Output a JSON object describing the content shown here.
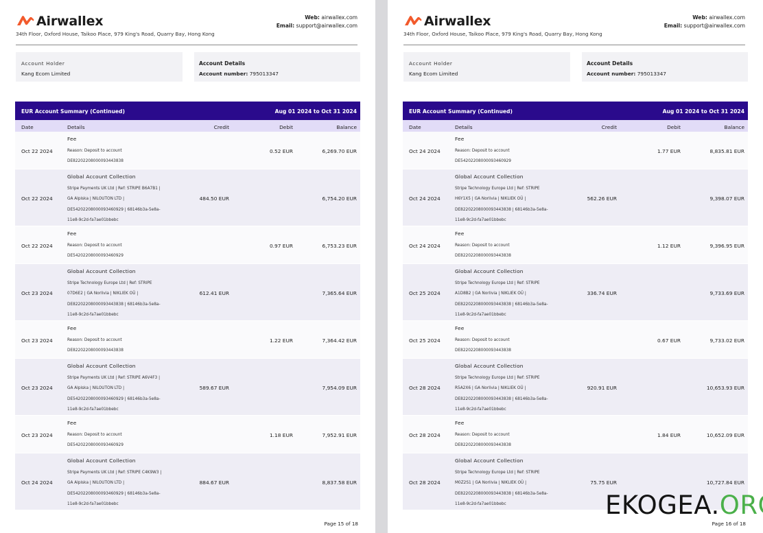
{
  "brand": {
    "name": "Airwallex",
    "address": "34th Floor, Oxford House, Taikoo Place, 979 King's Road, Quarry Bay, Hong Kong",
    "web_label": "Web:",
    "web": "airwallex.com",
    "email_label": "Email:",
    "email": "support@airwallex.com"
  },
  "account": {
    "holder_label": "Account Holder",
    "holder": "Kang Ecom Limited",
    "details_label": "Account Details",
    "number_label": "Account number:",
    "number": "795013347"
  },
  "summary": {
    "title": "EUR Account Summary (Continued)",
    "period": "Aug 01 2024 to Oct 31 2024"
  },
  "columns": {
    "date": "Date",
    "details": "Details",
    "credit": "Credit",
    "debit": "Debit",
    "balance": "Balance"
  },
  "pages": [
    {
      "page_label": "Page 15 of 18",
      "rows": [
        {
          "type": "fee",
          "date": "Oct 22 2024",
          "title": "Fee",
          "lines": [
            "Reason: Deposit to account",
            "DE82202208000093443838"
          ],
          "credit": "",
          "debit": "0.52 EUR",
          "balance": "6,269.70 EUR"
        },
        {
          "type": "collection",
          "date": "Oct 22 2024",
          "title": "Global Account Collection",
          "lines": [
            "Stripe Payments UK Ltd | Ref: STRIPE B6A7B1 |",
            "GA Alpiska | NILOUTON LTD |",
            "DE54202208000093460929 | 68146b3a-5e8a-",
            "11e8-9c2d-fa7ae01bbebc"
          ],
          "credit": "484.50 EUR",
          "debit": "",
          "balance": "6,754.20 EUR"
        },
        {
          "type": "fee",
          "date": "Oct 22 2024",
          "title": "Fee",
          "lines": [
            "Reason: Deposit to account",
            "DE54202208000093460929"
          ],
          "credit": "",
          "debit": "0.97 EUR",
          "balance": "6,753.23 EUR"
        },
        {
          "type": "collection",
          "date": "Oct 23 2024",
          "title": "Global Account Collection",
          "lines": [
            "Stripe Technology Europe Ltd | Ref: STRIPE",
            "07D6E2 | GA Norlivia | NIKLIEK OÜ |",
            "DE82202208000093443838 | 68146b3a-5e8a-",
            "11e8-9c2d-fa7ae01bbebc"
          ],
          "credit": "612.41 EUR",
          "debit": "",
          "balance": "7,365.64 EUR"
        },
        {
          "type": "fee",
          "date": "Oct 23 2024",
          "title": "Fee",
          "lines": [
            "Reason: Deposit to account",
            "DE82202208000093443838"
          ],
          "credit": "",
          "debit": "1.22 EUR",
          "balance": "7,364.42 EUR"
        },
        {
          "type": "collection",
          "date": "Oct 23 2024",
          "title": "Global Account Collection",
          "lines": [
            "Stripe Payments UK Ltd | Ref: STRIPE A6V4F3 |",
            "GA Alpiska | NILOUTON LTD |",
            "DE54202208000093460929 | 68146b3a-5e8a-",
            "11e8-9c2d-fa7ae01bbebc"
          ],
          "credit": "589.67 EUR",
          "debit": "",
          "balance": "7,954.09 EUR"
        },
        {
          "type": "fee",
          "date": "Oct 23 2024",
          "title": "Fee",
          "lines": [
            "Reason: Deposit to account",
            "DE54202208000093460929"
          ],
          "credit": "",
          "debit": "1.18 EUR",
          "balance": "7,952.91 EUR"
        },
        {
          "type": "collection",
          "date": "Oct 24 2024",
          "title": "Global Account Collection",
          "lines": [
            "Stripe Payments UK Ltd | Ref: STRIPE C4K9W3 |",
            "GA Alpiska | NILOUTON LTD |",
            "DE54202208000093460929 | 68146b3a-5e8a-",
            "11e8-9c2d-fa7ae01bbebc"
          ],
          "credit": "884.67 EUR",
          "debit": "",
          "balance": "8,837.58 EUR"
        }
      ]
    },
    {
      "page_label": "Page 16 of 18",
      "rows": [
        {
          "type": "fee",
          "date": "Oct 24 2024",
          "title": "Fee",
          "lines": [
            "Reason: Deposit to account",
            "DE54202208000093460929"
          ],
          "credit": "",
          "debit": "1.77 EUR",
          "balance": "8,835.81 EUR"
        },
        {
          "type": "collection",
          "date": "Oct 24 2024",
          "title": "Global Account Collection",
          "lines": [
            "Stripe Technology Europe Ltd | Ref: STRIPE",
            "H6Y1X5 | GA Norlivia | NIKLIEK OÜ |",
            "DE82202208000093443838 | 68146b3a-5e8a-",
            "11e8-9c2d-fa7ae01bbebc"
          ],
          "credit": "562.26 EUR",
          "debit": "",
          "balance": "9,398.07 EUR"
        },
        {
          "type": "fee",
          "date": "Oct 24 2024",
          "title": "Fee",
          "lines": [
            "Reason: Deposit to account",
            "DE82202208000093443838"
          ],
          "credit": "",
          "debit": "1.12 EUR",
          "balance": "9,396.95 EUR"
        },
        {
          "type": "collection",
          "date": "Oct 25 2024",
          "title": "Global Account Collection",
          "lines": [
            "Stripe Technology Europe Ltd | Ref: STRIPE",
            "A1D8B2 | GA Norlivia | NIKLIEK OÜ |",
            "DE82202208000093443838 | 68146b3a-5e8a-",
            "11e8-9c2d-fa7ae01bbebc"
          ],
          "credit": "336.74 EUR",
          "debit": "",
          "balance": "9,733.69 EUR"
        },
        {
          "type": "fee",
          "date": "Oct 25 2024",
          "title": "Fee",
          "lines": [
            "Reason: Deposit to account",
            "DE82202208000093443838"
          ],
          "credit": "",
          "debit": "0.67 EUR",
          "balance": "9,733.02 EUR"
        },
        {
          "type": "collection",
          "date": "Oct 28 2024",
          "title": "Global Account Collection",
          "lines": [
            "Stripe Technology Europe Ltd | Ref: STRIPE",
            "R5A2X6 | GA Norlivia | NIKLIEK OÜ |",
            "DE82202208000093443838 | 68146b3a-5e8a-",
            "11e8-9c2d-fa7ae01bbebc"
          ],
          "credit": "920.91 EUR",
          "debit": "",
          "balance": "10,653.93 EUR"
        },
        {
          "type": "fee",
          "date": "Oct 28 2024",
          "title": "Fee",
          "lines": [
            "Reason: Deposit to account",
            "DE82202208000093443838"
          ],
          "credit": "",
          "debit": "1.84 EUR",
          "balance": "10,652.09 EUR"
        },
        {
          "type": "collection",
          "date": "Oct 28 2024",
          "title": "Global Account Collection",
          "lines": [
            "Stripe Technology Europe Ltd | Ref: STRIPE",
            "M0Z2S1 | GA Norlivia | NIKLIEK OÜ |",
            "DE82202208000093443838 | 68146b3a-5e8a-",
            "11e8-9c2d-fa7ae01bbebc"
          ],
          "credit": "75.75 EUR",
          "debit": "",
          "balance": "10,727.84 EUR"
        }
      ]
    }
  ],
  "watermark": {
    "main": "EKOGEA.",
    "tld": "ORG"
  },
  "colors": {
    "header_bar": "#2a0a8c",
    "column_header": "#e2dcf7",
    "logo_orange": "#f25a2c",
    "watermark_green": "#4bb04a"
  }
}
